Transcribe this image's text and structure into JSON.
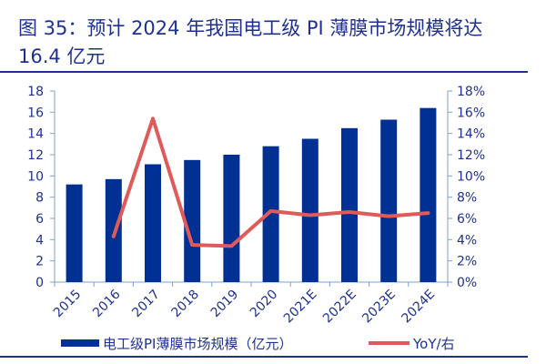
{
  "title": "图 35：预计 2024 年我国电工级 PI 薄膜市场规模将达 16.4 亿元",
  "chart_data": {
    "type": "bar+line",
    "title": "图 35：预计 2024 年我国电工级 PI 薄膜市场规模将达 16.4 亿元",
    "categories": [
      "2015",
      "2016",
      "2017",
      "2018",
      "2019",
      "2020",
      "2021E",
      "2022E",
      "2023E",
      "2024E"
    ],
    "series": [
      {
        "name": "电工级PI薄膜市场规模（亿元）",
        "type": "bar",
        "axis": "left",
        "color": "#003192",
        "values": [
          9.2,
          9.7,
          11.1,
          11.5,
          12.0,
          12.8,
          13.5,
          14.5,
          15.3,
          16.4
        ]
      },
      {
        "name": "YoY/右",
        "type": "line",
        "axis": "right",
        "color": "#e05a5a",
        "values": [
          null,
          4.3,
          15.4,
          3.5,
          3.4,
          6.7,
          6.3,
          6.6,
          6.2,
          6.5
        ]
      }
    ],
    "yleft": {
      "range": [
        0,
        18
      ],
      "ticks": [
        0,
        2,
        4,
        6,
        8,
        10,
        12,
        14,
        16,
        18
      ]
    },
    "yright": {
      "range": [
        0,
        18
      ],
      "unit": "%",
      "ticks": [
        "0%",
        "2%",
        "4%",
        "6%",
        "8%",
        "10%",
        "12%",
        "14%",
        "16%",
        "18%"
      ]
    },
    "legend": "bottom",
    "grid": false
  }
}
